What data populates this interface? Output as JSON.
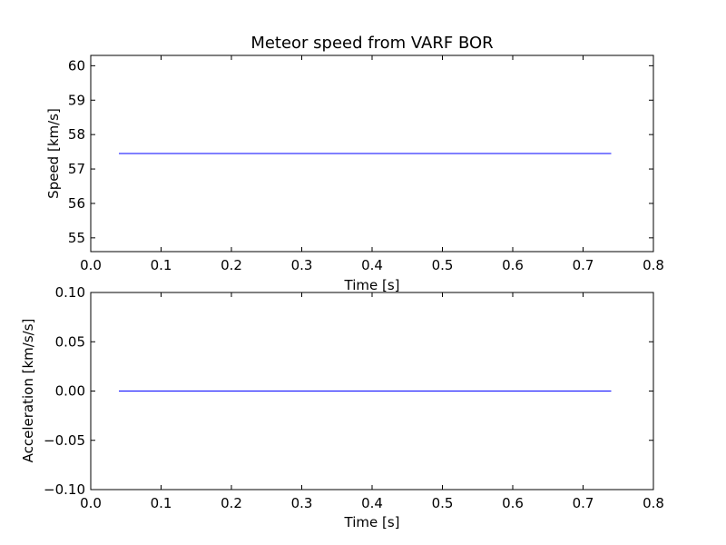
{
  "chart_data": [
    {
      "type": "line",
      "title": "Meteor speed from  VARF BOR",
      "xlabel": "Time [s]",
      "ylabel": "Speed [km/s]",
      "xlim": [
        0.0,
        0.8
      ],
      "ylim": [
        54.6,
        60.3
      ],
      "xticks": [
        "0.0",
        "0.1",
        "0.2",
        "0.3",
        "0.4",
        "0.5",
        "0.6",
        "0.7",
        "0.8"
      ],
      "yticks": [
        "55",
        "56",
        "57",
        "58",
        "59",
        "60"
      ],
      "grid": false,
      "series": [
        {
          "color": "#0000ff",
          "x": [
            0.04,
            0.74
          ],
          "y": [
            57.45,
            57.45
          ]
        }
      ]
    },
    {
      "type": "line",
      "title": "",
      "xlabel": "Time [s]",
      "ylabel": "Acceleration [km/s/s]",
      "xlim": [
        0.0,
        0.8
      ],
      "ylim": [
        -0.1,
        0.1
      ],
      "xticks": [
        "0.0",
        "0.1",
        "0.2",
        "0.3",
        "0.4",
        "0.5",
        "0.6",
        "0.7",
        "0.8"
      ],
      "yticks": [
        "0.10",
        "0.05",
        "0.00",
        "−0.05",
        "−0.10"
      ],
      "grid": false,
      "series": [
        {
          "color": "#0000ff",
          "x": [
            0.04,
            0.74
          ],
          "y": [
            0.0,
            0.0
          ]
        }
      ]
    }
  ]
}
